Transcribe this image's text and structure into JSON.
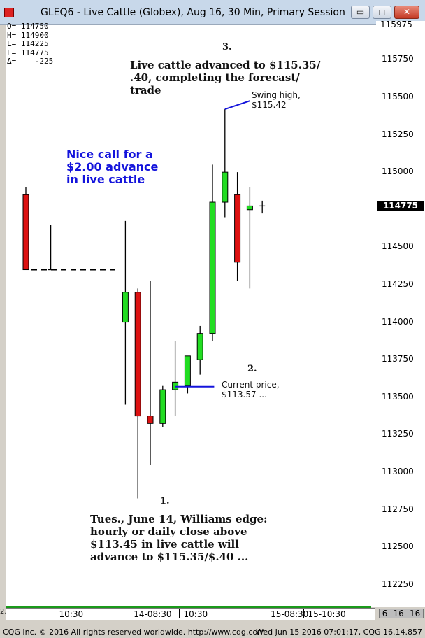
{
  "window": {
    "title": "GLEQ6 - Live Cattle (Globex), Aug 16, 30 Min, Primary Session",
    "minimize": "▭",
    "maximize": "◻",
    "close": "✕"
  },
  "ohlc": {
    "open": "O= 114750",
    "high": "H= 114900",
    "low": "L= 114225",
    "last": "L= 114775",
    "change": "Δ=    -225"
  },
  "annotations": {
    "marker1": "1.",
    "marker2": "2.",
    "marker3": "3.",
    "edge_lines": [
      "Tues., June 14, Williams edge:",
      "hourly or daily close above",
      "$113.45 in live cattle will",
      "advance to $115.35/$.40 ..."
    ],
    "advanced_lines": [
      "Live cattle advanced to $115.35/",
      ".40, completing the forecast/",
      "trade"
    ],
    "nice_call_lines": [
      "Nice call for a",
      "$2.00 advance",
      "in live cattle"
    ],
    "swing_high_lines": [
      "Swing high,",
      "$115.42"
    ],
    "current_price_lines": [
      "Current price,",
      "$113.57 ..."
    ]
  },
  "axis": {
    "top_tick": "115975",
    "last_price": "114775",
    "date_badge": "6 -16 -16",
    "x_marker": "2."
  },
  "colors": {
    "up": "#22dd22",
    "down": "#dd1111",
    "annotation_line": "#1414dc",
    "current_price_line": "#1414dc"
  },
  "chart_data": {
    "type": "candlestick",
    "symbol": "GLEQ6",
    "interval": "30 Min",
    "ylim": [
      112100,
      115980
    ],
    "y_ticks": [
      112250,
      112500,
      112750,
      113000,
      113250,
      113500,
      113750,
      114000,
      114250,
      114500,
      114750,
      115000,
      115250,
      115500,
      115750
    ],
    "y_tick_labels": [
      "112250",
      "112500",
      "112750",
      "113000",
      "113250",
      "113500",
      "113750",
      "114000",
      "114250",
      "114500",
      "",
      "115000",
      "115250",
      "115500",
      "115750"
    ],
    "x_labels": [
      {
        "label": "10:30",
        "bar": 2.5
      },
      {
        "label": "14-08:30",
        "bar": 8.5
      },
      {
        "label": "10:30",
        "bar": 12.5
      },
      {
        "label": "15-08:30",
        "bar": 19.5
      },
      {
        "label": "15-10:30",
        "bar": 22.5
      }
    ],
    "bars": [
      {
        "i": 0,
        "o": 114850,
        "h": 114900,
        "l": 114350,
        "c": 114350
      },
      {
        "i": 2,
        "o": 114350,
        "h": 114650,
        "l": 114350,
        "c": 114350
      },
      {
        "i": 8,
        "o": 114000,
        "h": 114675,
        "l": 113450,
        "c": 114200
      },
      {
        "i": 9,
        "o": 114200,
        "h": 114225,
        "l": 112825,
        "c": 113375
      },
      {
        "i": 10,
        "o": 113375,
        "h": 114275,
        "l": 113050,
        "c": 113325
      },
      {
        "i": 11,
        "o": 113325,
        "h": 113575,
        "l": 113300,
        "c": 113550
      },
      {
        "i": 12,
        "o": 113550,
        "h": 113875,
        "l": 113375,
        "c": 113600
      },
      {
        "i": 13,
        "o": 113575,
        "h": 113775,
        "l": 113525,
        "c": 113775
      },
      {
        "i": 14,
        "o": 113750,
        "h": 113975,
        "l": 113650,
        "c": 113925
      },
      {
        "i": 15,
        "o": 113925,
        "h": 115050,
        "l": 113875,
        "c": 114800
      },
      {
        "i": 16,
        "o": 114800,
        "h": 115420,
        "l": 114700,
        "c": 115000
      },
      {
        "i": 17,
        "o": 114850,
        "h": 115000,
        "l": 114275,
        "c": 114400
      },
      {
        "i": 18,
        "o": 114750,
        "h": 114900,
        "l": 114225,
        "c": 114775
      },
      {
        "i": 19,
        "o": 114775,
        "h": 114810,
        "l": 114725,
        "c": 114775
      }
    ],
    "level_dashed": 114350,
    "swing_high": 115420,
    "current_price_level": 113570
  },
  "status": {
    "left": "CQG Inc. © 2016 All rights reserved worldwide. http://www.cqg.com",
    "right": "Wed Jun 15 2016 07:01:17, CQG 16.14.857"
  }
}
